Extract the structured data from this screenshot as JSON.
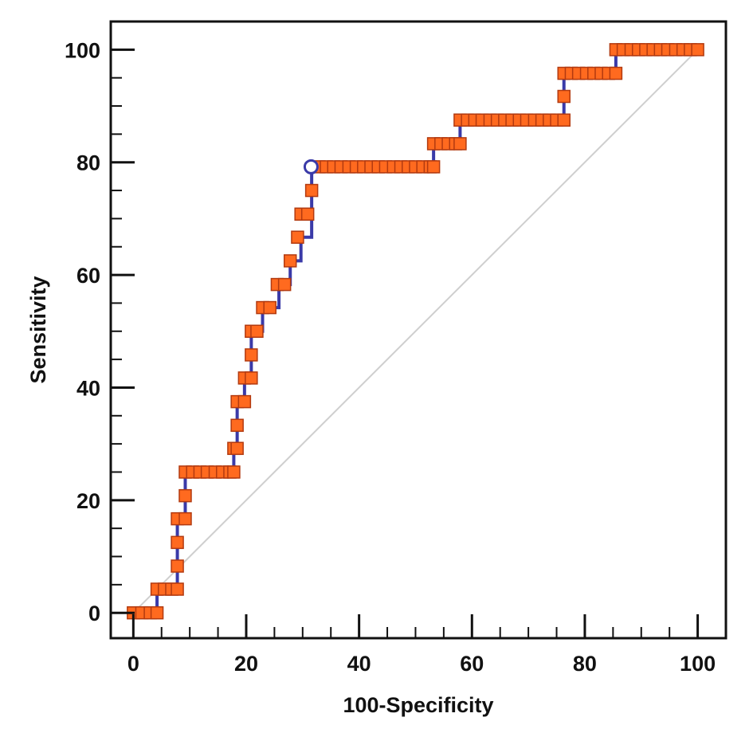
{
  "chart_data": {
    "type": "line",
    "title": "",
    "xlabel": "100-Specificity",
    "ylabel": "Sensitivity",
    "xlim": [
      -4,
      105
    ],
    "ylim": [
      -4.5,
      105
    ],
    "grid": false,
    "x_ticks": [
      0,
      20,
      40,
      60,
      80,
      100
    ],
    "y_ticks": [
      0,
      20,
      40,
      60,
      80,
      100
    ],
    "x_tick_labels": [
      "0",
      "20",
      "40",
      "60",
      "80",
      "100"
    ],
    "y_tick_labels": [
      "0",
      "20",
      "40",
      "60",
      "80",
      "100"
    ],
    "reference_line": {
      "x": [
        0,
        100
      ],
      "y": [
        0,
        100
      ]
    },
    "optimal_point": {
      "x": 31.5,
      "y": 79.2
    },
    "series": [
      {
        "x": [
          0,
          4.2,
          4.2,
          7.8,
          7.8,
          9.2,
          9.2,
          17.8,
          17.8,
          18.4,
          18.4,
          19.7,
          19.7,
          20.9,
          20.9,
          22.9,
          22.9,
          25.8,
          25.8,
          27.8,
          27.8,
          29.7,
          29.7,
          31.6,
          31.6,
          53.2,
          53.2,
          57.9,
          57.9,
          76.3,
          76.3,
          85.5,
          85.5,
          100
        ],
        "y": [
          0,
          0,
          4.2,
          4.2,
          16.7,
          16.7,
          25,
          25,
          29.2,
          29.2,
          37.5,
          37.5,
          41.7,
          41.7,
          50,
          50,
          54.2,
          54.2,
          58.3,
          58.3,
          62.5,
          62.5,
          66.7,
          66.7,
          79.2,
          79.2,
          83.3,
          83.3,
          87.5,
          87.5,
          95.8,
          95.8,
          100,
          100
        ]
      }
    ],
    "points": [
      [
        0,
        0
      ],
      [
        1.5,
        0
      ],
      [
        3,
        0
      ],
      [
        4.2,
        0
      ],
      [
        4.2,
        4.2
      ],
      [
        5.5,
        4.2
      ],
      [
        6.8,
        4.2
      ],
      [
        7.8,
        4.2
      ],
      [
        7.8,
        8.3
      ],
      [
        7.8,
        12.5
      ],
      [
        7.8,
        16.7
      ],
      [
        9.2,
        16.7
      ],
      [
        9.2,
        20.8
      ],
      [
        9.2,
        25
      ],
      [
        10.5,
        25
      ],
      [
        11.8,
        25
      ],
      [
        13.1,
        25
      ],
      [
        14.5,
        25
      ],
      [
        15.8,
        25
      ],
      [
        17.1,
        25
      ],
      [
        17.8,
        25
      ],
      [
        17.8,
        29.2
      ],
      [
        18.4,
        29.2
      ],
      [
        18.4,
        33.3
      ],
      [
        18.4,
        37.5
      ],
      [
        19.7,
        37.5
      ],
      [
        19.7,
        41.7
      ],
      [
        20.9,
        41.7
      ],
      [
        20.9,
        45.8
      ],
      [
        20.9,
        50
      ],
      [
        21.9,
        50
      ],
      [
        22.9,
        54.2
      ],
      [
        24.2,
        54.2
      ],
      [
        25.5,
        58.3
      ],
      [
        26.8,
        58.3
      ],
      [
        27.8,
        62.5
      ],
      [
        29.1,
        66.7
      ],
      [
        29.7,
        70.8
      ],
      [
        30.9,
        70.8
      ],
      [
        31.6,
        75
      ],
      [
        32.9,
        79.2
      ],
      [
        34.2,
        79.2
      ],
      [
        35.5,
        79.2
      ],
      [
        36.8,
        79.2
      ],
      [
        38.2,
        79.2
      ],
      [
        39.5,
        79.2
      ],
      [
        40.8,
        79.2
      ],
      [
        42.1,
        79.2
      ],
      [
        43.4,
        79.2
      ],
      [
        44.7,
        79.2
      ],
      [
        46.1,
        79.2
      ],
      [
        47.4,
        79.2
      ],
      [
        48.7,
        79.2
      ],
      [
        50,
        79.2
      ],
      [
        51.3,
        79.2
      ],
      [
        52.6,
        79.2
      ],
      [
        53.2,
        79.2
      ],
      [
        53.2,
        83.3
      ],
      [
        54.5,
        83.3
      ],
      [
        55.8,
        83.3
      ],
      [
        57.1,
        83.3
      ],
      [
        57.9,
        83.3
      ],
      [
        57.9,
        87.5
      ],
      [
        59.2,
        87.5
      ],
      [
        60.5,
        87.5
      ],
      [
        61.8,
        87.5
      ],
      [
        63.2,
        87.5
      ],
      [
        64.5,
        87.5
      ],
      [
        65.8,
        87.5
      ],
      [
        67.1,
        87.5
      ],
      [
        68.4,
        87.5
      ],
      [
        69.7,
        87.5
      ],
      [
        71.1,
        87.5
      ],
      [
        72.4,
        87.5
      ],
      [
        73.7,
        87.5
      ],
      [
        75,
        87.5
      ],
      [
        76.3,
        87.5
      ],
      [
        76.3,
        91.7
      ],
      [
        76.3,
        95.8
      ],
      [
        77.6,
        95.8
      ],
      [
        78.9,
        95.8
      ],
      [
        80.3,
        95.8
      ],
      [
        81.6,
        95.8
      ],
      [
        82.9,
        95.8
      ],
      [
        84.2,
        95.8
      ],
      [
        85.5,
        95.8
      ],
      [
        85.5,
        100
      ],
      [
        86.8,
        100
      ],
      [
        88.2,
        100
      ],
      [
        89.5,
        100
      ],
      [
        90.8,
        100
      ],
      [
        92.1,
        100
      ],
      [
        93.4,
        100
      ],
      [
        94.7,
        100
      ],
      [
        96.1,
        100
      ],
      [
        97.4,
        100
      ],
      [
        98.7,
        100
      ],
      [
        100,
        100
      ]
    ],
    "colors": {
      "curve": "#3a3aa8",
      "marker_fill": "#ff6a1f",
      "marker_edge": "#b23a10",
      "reference": "#cfcfcf",
      "optimal_fill": "#ffffff",
      "frame": "#111111"
    }
  }
}
